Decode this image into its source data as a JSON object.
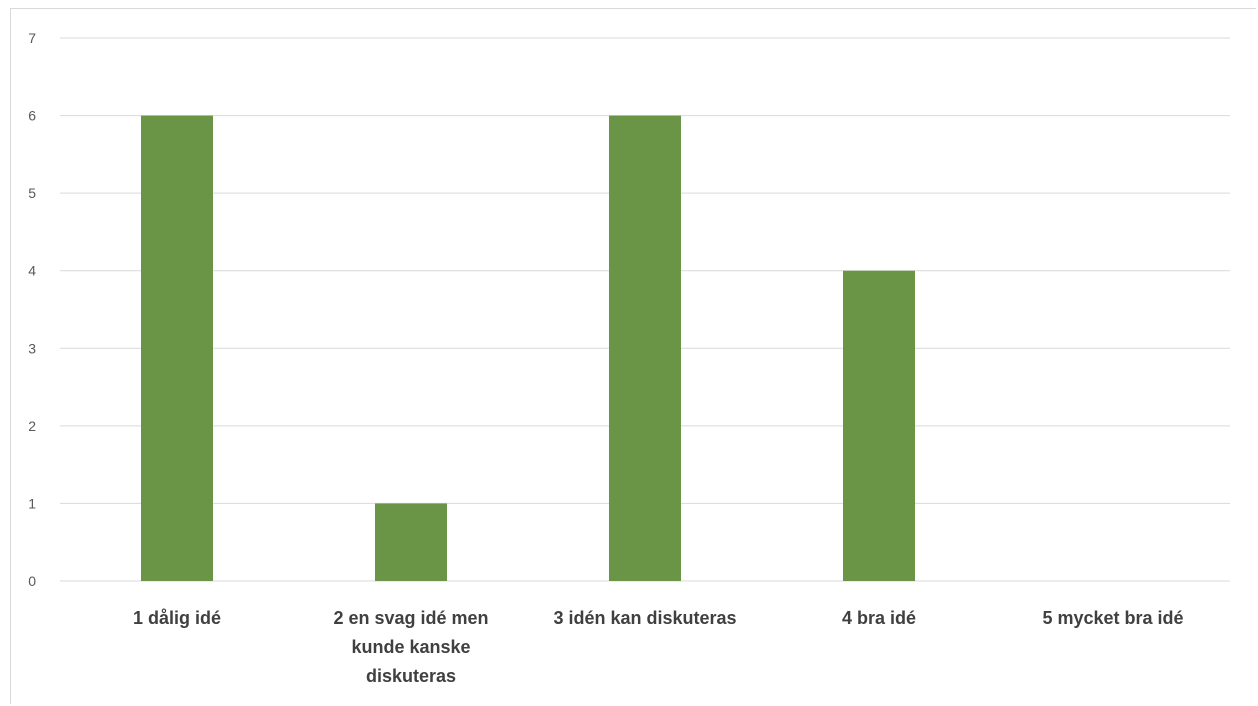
{
  "chart_data": {
    "type": "bar",
    "title": "",
    "xlabel": "",
    "ylabel": "",
    "categories": [
      "1 dålig idé",
      "2 en svag idé men kunde kanske diskuteras",
      "3 idén kan diskuteras",
      "4 bra idé",
      "5 mycket bra idé"
    ],
    "category_label_lines": [
      [
        "1 dålig idé"
      ],
      [
        "2 en svag idé men",
        "kunde kanske",
        "diskuteras"
      ],
      [
        "3 idén kan diskuteras"
      ],
      [
        "4 bra idé"
      ],
      [
        "5 mycket bra idé"
      ]
    ],
    "values": [
      6,
      1,
      6,
      4,
      0
    ],
    "ylim": [
      0,
      7
    ],
    "yticks": [
      "0",
      "1",
      "2",
      "3",
      "4",
      "5",
      "6",
      "7"
    ],
    "grid": true,
    "legend": "none",
    "bar_color": "#6a9446"
  }
}
